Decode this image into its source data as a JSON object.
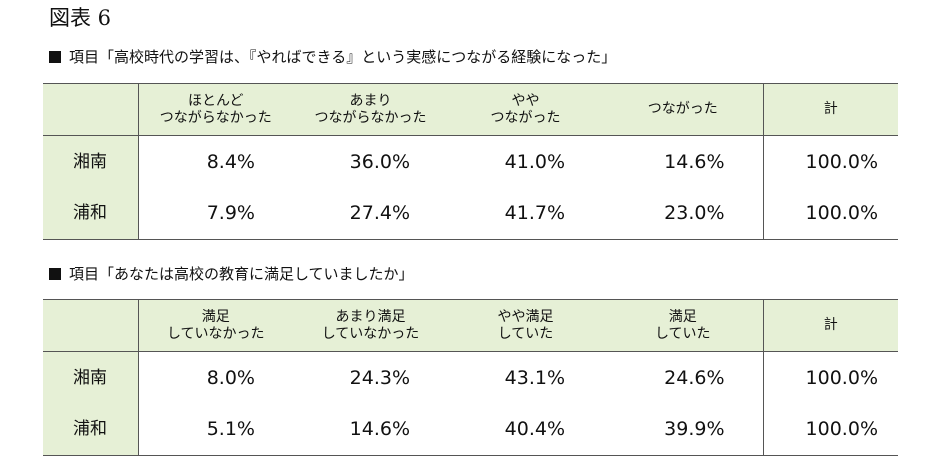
{
  "figure_title": "図表 6",
  "sections": [
    {
      "heading": "項目「高校時代の学習は、『やればできる』という実感につながる経験になった」",
      "columns": [
        {
          "line1": "ほとんど",
          "line2": "つながらなかった"
        },
        {
          "line1": "あまり",
          "line2": "つながらなかった"
        },
        {
          "line1": "やや",
          "line2": "つながった"
        },
        {
          "line1": "つながった",
          "line2": ""
        }
      ],
      "total_label": "計",
      "rows": [
        {
          "label": "湘南",
          "values": [
            "8.4%",
            "36.0%",
            "41.0%",
            "14.6%"
          ],
          "total": "100.0%"
        },
        {
          "label": "浦和",
          "values": [
            "7.9%",
            "27.4%",
            "41.7%",
            "23.0%"
          ],
          "total": "100.0%"
        }
      ]
    },
    {
      "heading": "項目「あなたは高校の教育に満足していましたか」",
      "columns": [
        {
          "line1": "満足",
          "line2": "していなかった"
        },
        {
          "line1": "あまり満足",
          "line2": "していなかった"
        },
        {
          "line1": "やや満足",
          "line2": "していた"
        },
        {
          "line1": "満足",
          "line2": "していた"
        }
      ],
      "total_label": "計",
      "rows": [
        {
          "label": "湘南",
          "values": [
            "8.0%",
            "24.3%",
            "43.1%",
            "24.6%"
          ],
          "total": "100.0%"
        },
        {
          "label": "浦和",
          "values": [
            "5.1%",
            "14.6%",
            "40.4%",
            "39.9%"
          ],
          "total": "100.0%"
        }
      ]
    }
  ],
  "colors": {
    "header_fill": "#e6f0d6",
    "rule": "#555555",
    "text": "#111111"
  }
}
